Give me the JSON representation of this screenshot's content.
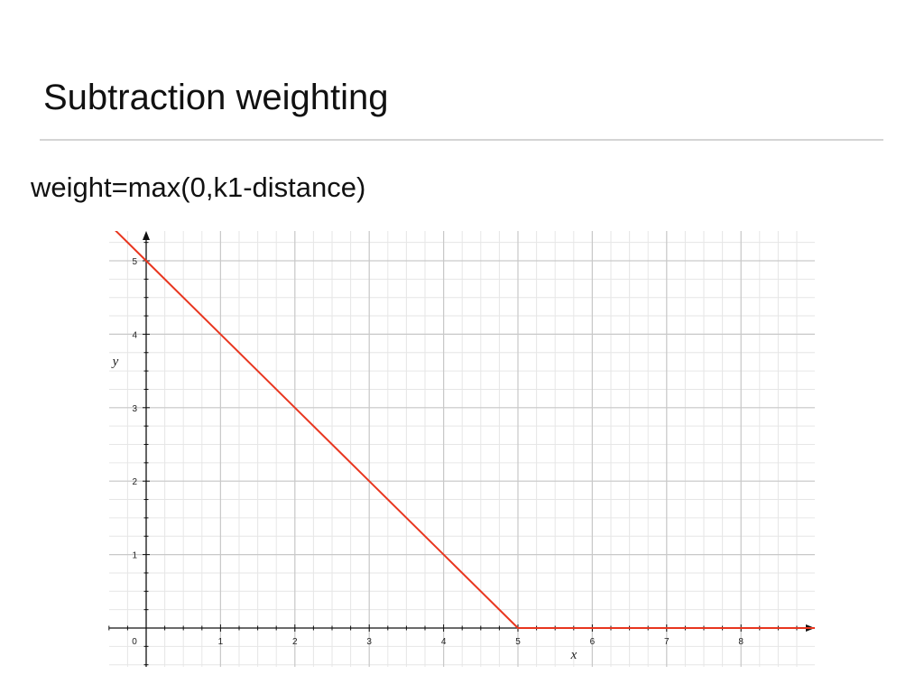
{
  "slide": {
    "title": "Subtraction weighting",
    "formula": "weight=max(0,k1-distance)"
  },
  "chart_data": {
    "type": "line",
    "title": "",
    "xlabel": "x",
    "ylabel": "y",
    "xlim": [
      -0.5,
      9.0
    ],
    "ylim": [
      -0.5,
      5.4
    ],
    "x_ticks": [
      "0",
      "1",
      "2",
      "3",
      "4",
      "5",
      "6",
      "7",
      "8"
    ],
    "y_ticks": [
      "1",
      "2",
      "3",
      "4",
      "5"
    ],
    "grid": true,
    "legend": "none",
    "series": [
      {
        "x": [
          -0.45,
          0,
          1,
          2,
          3,
          4,
          5,
          6,
          7,
          8,
          9.0
        ],
        "y": [
          5.45,
          5,
          4,
          3,
          2,
          1,
          0,
          0,
          0,
          0,
          0
        ],
        "color": "#e8361f"
      }
    ],
    "colors": {
      "major_grid": "#c9c9c9",
      "minor_grid": "#e6e6e6",
      "axis": "#111111",
      "line": "#e8361f"
    }
  }
}
